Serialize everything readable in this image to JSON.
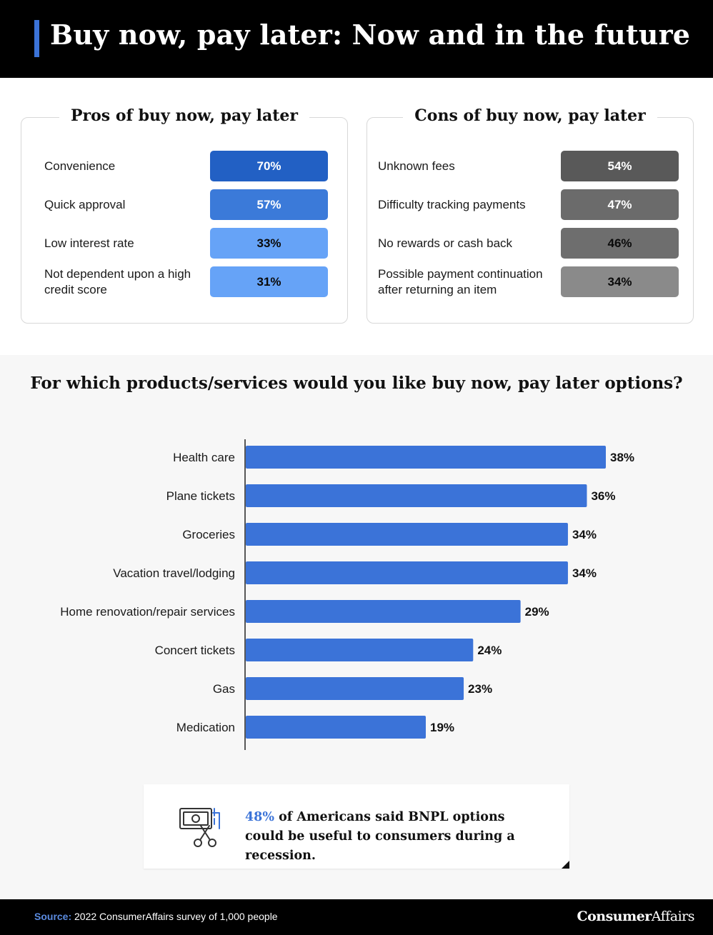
{
  "header": {
    "title": "Buy now, pay later: Now and in the future"
  },
  "pros": {
    "title": "Pros of buy now, pay later",
    "items": [
      {
        "label": "Convenience",
        "value": "70%",
        "bg": "#2260c4",
        "fg": "#ffffff"
      },
      {
        "label": "Quick approval",
        "value": "57%",
        "bg": "#3b7ad9",
        "fg": "#ffffff"
      },
      {
        "label": "Low interest rate",
        "value": "33%",
        "bg": "#66a3f7",
        "fg": "#0a0a0a"
      },
      {
        "label": "Not dependent upon a high credit score",
        "value": "31%",
        "bg": "#66a3f7",
        "fg": "#0a0a0a"
      }
    ]
  },
  "cons": {
    "title": "Cons of buy now, pay later",
    "items": [
      {
        "label": "Unknown fees",
        "value": "54%",
        "bg": "#595959",
        "fg": "#ffffff"
      },
      {
        "label": "Difficulty tracking payments",
        "value": "47%",
        "bg": "#6b6b6b",
        "fg": "#ffffff"
      },
      {
        "label": "No rewards or cash back",
        "value": "46%",
        "bg": "#6e6e6e",
        "fg": "#0a0a0a"
      },
      {
        "label": "Possible payment continuation after returning an item",
        "value": "34%",
        "bg": "#8a8a8a",
        "fg": "#0a0a0a"
      }
    ]
  },
  "chart_data": {
    "type": "bar",
    "orientation": "horizontal",
    "title": "For which products/services would you like buy now, pay later options?",
    "categories": [
      "Health care",
      "Plane tickets",
      "Groceries",
      "Vacation travel/lodging",
      "Home renovation/repair services",
      "Concert tickets",
      "Gas",
      "Medication"
    ],
    "values": [
      38,
      36,
      34,
      34,
      29,
      24,
      23,
      19
    ],
    "value_labels": [
      "38%",
      "36%",
      "34%",
      "34%",
      "29%",
      "24%",
      "23%",
      "19%"
    ],
    "bar_color": "#3b73d8",
    "xlim": [
      0,
      38
    ],
    "grid": false,
    "legend": "none"
  },
  "callout": {
    "highlight": "48%",
    "text": " of Americans said BNPL options could be useful to consumers during a recession.",
    "icon": "money-scissors-icon"
  },
  "footer": {
    "source_key": "Source:",
    "source_text": " 2022 ConsumerAffairs survey of 1,000 people",
    "brand_bold": "Consumer",
    "brand_rest": "Affairs"
  }
}
